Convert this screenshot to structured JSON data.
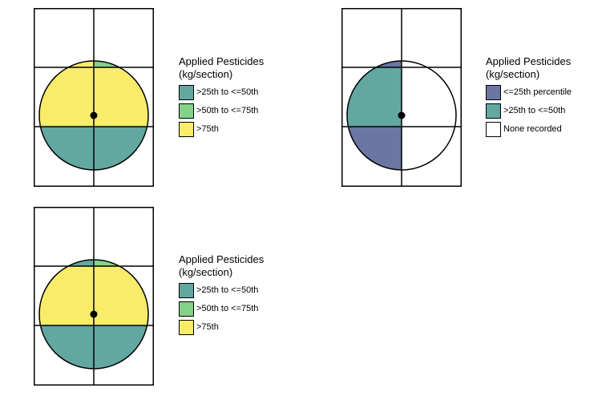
{
  "colors": {
    "lowest": "#6a76a3",
    "mid_low": "#62a8a1",
    "mid_high": "#84d287",
    "high": "#f8ec6a",
    "none": "#ffffff"
  },
  "panels": [
    {
      "title_line1": "Applied Pesticides",
      "title_line2": "(kg/section)",
      "legend": [
        {
          "label": ">25th to <=50th",
          "color": "#62a8a1"
        },
        {
          "label": ">50th to <=75th",
          "color": "#84d287"
        },
        {
          "label": ">75th",
          "color": "#f8ec6a"
        }
      ],
      "sections": {
        "top_left": "#f8ec6a",
        "top_right": "#84d287",
        "middle_left": "#f8ec6a",
        "middle_right": "#f8ec6a",
        "bottom_left": "#62a8a1",
        "bottom_right": "#62a8a1"
      }
    },
    {
      "title_line1": "Applied Pesticides",
      "title_line2": "(kg/section)",
      "legend": [
        {
          "label": "<=25th percentile",
          "color": "#6a76a3"
        },
        {
          "label": ">25th to <=50th",
          "color": "#62a8a1"
        },
        {
          "label": "None recorded",
          "color": "#ffffff"
        }
      ],
      "sections": {
        "top_left": "#6a76a3",
        "top_right": "#ffffff",
        "middle_left": "#62a8a1",
        "middle_right": "#ffffff",
        "bottom_left": "#6a76a3",
        "bottom_right": "#ffffff"
      }
    },
    {
      "title_line1": "Applied Pesticides",
      "title_line2": "(kg/section)",
      "legend": [
        {
          "label": ">25th to <=50th",
          "color": "#62a8a1"
        },
        {
          "label": ">50th to <=75th",
          "color": "#84d287"
        },
        {
          "label": ">75th",
          "color": "#f8ec6a"
        }
      ],
      "sections": {
        "top_left": "#62a8a1",
        "top_right": "#84d287",
        "middle_left": "#f8ec6a",
        "middle_right": "#f8ec6a",
        "bottom_left": "#62a8a1",
        "bottom_right": "#62a8a1"
      }
    }
  ]
}
